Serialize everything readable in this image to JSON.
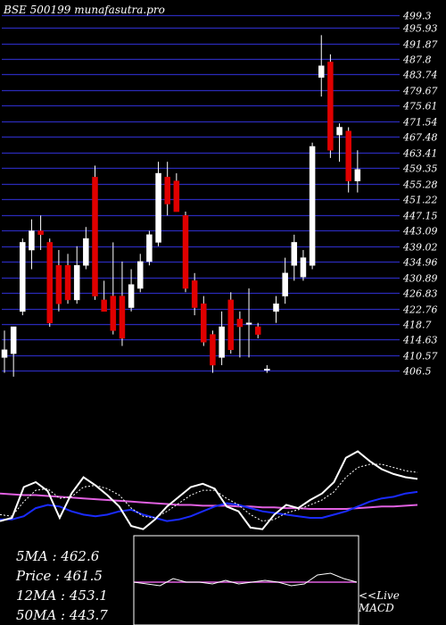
{
  "chart_data": {
    "type": "candlestick",
    "title": "BSE 500199 munafasutra.pro",
    "price_axis": [
      "499.3",
      "495.93",
      "491.87",
      "487.8",
      "483.74",
      "479.67",
      "475.61",
      "471.54",
      "467.48",
      "463.41",
      "459.35",
      "455.28",
      "451.22",
      "447.15",
      "443.09",
      "439.02",
      "434.96",
      "430.89",
      "426.83",
      "422.76",
      "418.7",
      "414.63",
      "410.57",
      "406.5"
    ],
    "ylim": [
      404.5,
      501.3
    ],
    "candles": [
      {
        "o": 410,
        "h": 417,
        "l": 406,
        "c": 412
      },
      {
        "o": 411,
        "h": 418,
        "l": 405,
        "c": 418
      },
      {
        "o": 422,
        "h": 441,
        "l": 421,
        "c": 440
      },
      {
        "o": 438,
        "h": 446,
        "l": 433,
        "c": 443
      },
      {
        "o": 443,
        "h": 447,
        "l": 438,
        "c": 442
      },
      {
        "o": 440,
        "h": 441,
        "l": 418,
        "c": 419
      },
      {
        "o": 434,
        "h": 438,
        "l": 422,
        "c": 424
      },
      {
        "o": 434,
        "h": 437,
        "l": 424,
        "c": 425
      },
      {
        "o": 425,
        "h": 439,
        "l": 424,
        "c": 434
      },
      {
        "o": 434,
        "h": 444,
        "l": 433,
        "c": 441
      },
      {
        "o": 457,
        "h": 460,
        "l": 425,
        "c": 426
      },
      {
        "o": 425,
        "h": 430,
        "l": 422,
        "c": 422
      },
      {
        "o": 426,
        "h": 440,
        "l": 416,
        "c": 417
      },
      {
        "o": 426,
        "h": 435,
        "l": 413,
        "c": 415
      },
      {
        "o": 423,
        "h": 433,
        "l": 422,
        "c": 429
      },
      {
        "o": 428,
        "h": 437,
        "l": 427,
        "c": 435
      },
      {
        "o": 435,
        "h": 443,
        "l": 434,
        "c": 442
      },
      {
        "o": 440,
        "h": 461,
        "l": 439,
        "c": 458
      },
      {
        "o": 457,
        "h": 461,
        "l": 447,
        "c": 450
      },
      {
        "o": 456,
        "h": 458,
        "l": 448,
        "c": 448
      },
      {
        "o": 447,
        "h": 448,
        "l": 427,
        "c": 428
      },
      {
        "o": 430,
        "h": 432,
        "l": 421,
        "c": 423
      },
      {
        "o": 424,
        "h": 426,
        "l": 413,
        "c": 414
      },
      {
        "o": 416,
        "h": 417,
        "l": 406,
        "c": 408
      },
      {
        "o": 410,
        "h": 422,
        "l": 408,
        "c": 418
      },
      {
        "o": 425,
        "h": 427,
        "l": 411,
        "c": 412
      },
      {
        "o": 420,
        "h": 422,
        "l": 410,
        "c": 418
      },
      {
        "o": 419,
        "h": 428,
        "l": 410,
        "c": 419
      },
      {
        "o": 418,
        "h": 419,
        "l": 415,
        "c": 416
      },
      {
        "o": 407,
        "h": 408,
        "l": 406,
        "c": 407
      },
      {
        "o": 422,
        "h": 426,
        "l": 419,
        "c": 424
      },
      {
        "o": 426,
        "h": 436,
        "l": 424,
        "c": 432
      },
      {
        "o": 434,
        "h": 442,
        "l": 430,
        "c": 440
      },
      {
        "o": 431,
        "h": 438,
        "l": 430,
        "c": 436
      },
      {
        "o": 434,
        "h": 466,
        "l": 433,
        "c": 465
      },
      {
        "o": 483,
        "h": 494,
        "l": 478,
        "c": 486
      },
      {
        "o": 487,
        "h": 489,
        "l": 462,
        "c": 464
      },
      {
        "o": 468,
        "h": 471,
        "l": 461,
        "c": 470
      },
      {
        "o": 469,
        "h": 470,
        "l": 453,
        "c": 456
      },
      {
        "o": 456,
        "h": 464,
        "l": 453,
        "c": 459
      }
    ],
    "moving_averages": {
      "5MA": {
        "label": "5MA",
        "value": "462.6",
        "color": "#ffffff"
      },
      "12MA": {
        "label": "12MA",
        "value": "453.1",
        "color": "#1a2bff"
      },
      "50MA": {
        "label": "50MA",
        "value": "443.7",
        "color": "#e060e0"
      }
    },
    "price": {
      "label": "Price",
      "value": "461.5"
    },
    "macd_label": [
      "<<Live",
      "MACD"
    ],
    "indicator_series": {
      "fast": [
        18,
        22,
        60,
        66,
        55,
        22,
        52,
        72,
        62,
        50,
        36,
        12,
        8,
        20,
        36,
        48,
        60,
        64,
        58,
        36,
        30,
        10,
        8,
        26,
        38,
        34,
        44,
        52,
        66,
        96,
        104,
        92,
        82,
        76,
        72,
        70
      ],
      "slow": [
        26,
        24,
        42,
        56,
        58,
        46,
        48,
        60,
        62,
        58,
        50,
        34,
        24,
        22,
        30,
        40,
        50,
        56,
        56,
        46,
        38,
        26,
        18,
        20,
        28,
        32,
        38,
        44,
        54,
        72,
        84,
        88,
        88,
        84,
        80,
        78
      ],
      "ma12": [
        20,
        20,
        24,
        34,
        38,
        36,
        30,
        26,
        24,
        26,
        30,
        32,
        26,
        22,
        18,
        20,
        24,
        30,
        36,
        40,
        38,
        34,
        30,
        28,
        26,
        24,
        22,
        22,
        26,
        30,
        36,
        42,
        46,
        48,
        52,
        54
      ],
      "ma50": [
        52,
        51,
        50,
        50,
        49,
        48,
        47,
        46,
        45,
        44,
        43,
        42,
        41,
        40,
        39,
        38,
        38,
        37,
        37,
        37,
        36,
        36,
        35,
        35,
        34,
        34,
        33,
        33,
        33,
        33,
        34,
        35,
        36,
        36,
        37,
        38
      ]
    },
    "macd_series": [
      0,
      -1,
      -2,
      2,
      0,
      0,
      -1,
      1,
      -1,
      0,
      1,
      0,
      -2,
      -1,
      4,
      5,
      2,
      0
    ]
  }
}
